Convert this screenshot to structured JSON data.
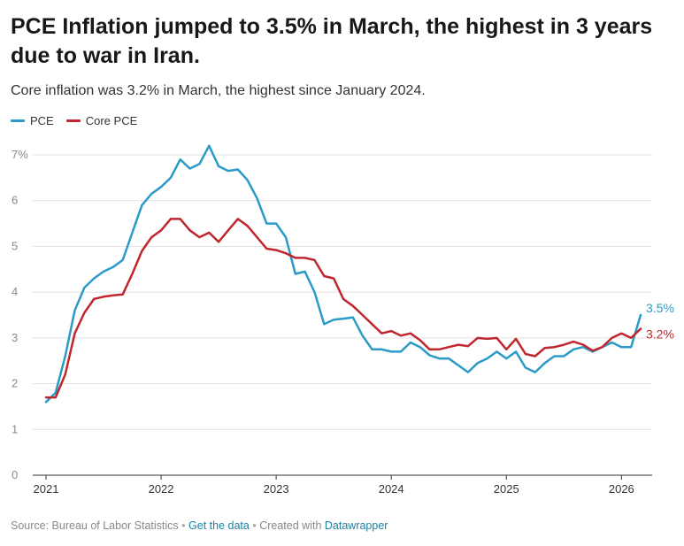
{
  "title": "PCE Inflation jumped to 3.5% in March, the highest in 3 years due to war in Iran.",
  "subtitle": "Core inflation was 3.2% in March, the highest since January 2024.",
  "footer": {
    "source": "Source: Bureau of Labor Statistics",
    "get_data": "Get the data",
    "created_with": "Created with",
    "tool": "Datawrapper",
    "sep": "•"
  },
  "chart_data": {
    "type": "line",
    "xlim": [
      "2021-01",
      "2026-03"
    ],
    "ylim": [
      0,
      7
    ],
    "y_ticks": [
      0,
      1,
      2,
      3,
      4,
      5,
      6,
      7
    ],
    "y_tick_labels": [
      "0",
      "1",
      "2",
      "3",
      "4",
      "5",
      "6",
      "7%"
    ],
    "x_ticks": [
      "2021-01",
      "2022-01",
      "2023-01",
      "2024-01",
      "2025-01",
      "2026-01"
    ],
    "x_tick_labels": [
      "2021",
      "2022",
      "2023",
      "2024",
      "2025",
      "2026"
    ],
    "grid": true,
    "legend_position": "top-left",
    "series": [
      {
        "name": "PCE",
        "color": "#2a9bc8",
        "end_label": "3.5%",
        "points": [
          [
            "2021-01",
            1.6
          ],
          [
            "2021-02",
            1.8
          ],
          [
            "2021-03",
            2.6
          ],
          [
            "2021-04",
            3.6
          ],
          [
            "2021-05",
            4.1
          ],
          [
            "2021-06",
            4.3
          ],
          [
            "2021-07",
            4.45
          ],
          [
            "2021-08",
            4.55
          ],
          [
            "2021-09",
            4.7
          ],
          [
            "2021-10",
            5.3
          ],
          [
            "2021-11",
            5.9
          ],
          [
            "2021-12",
            6.15
          ],
          [
            "2022-01",
            6.3
          ],
          [
            "2022-02",
            6.5
          ],
          [
            "2022-03",
            6.9
          ],
          [
            "2022-04",
            6.7
          ],
          [
            "2022-05",
            6.8
          ],
          [
            "2022-06",
            7.2
          ],
          [
            "2022-07",
            6.75
          ],
          [
            "2022-08",
            6.65
          ],
          [
            "2022-09",
            6.68
          ],
          [
            "2022-10",
            6.45
          ],
          [
            "2022-11",
            6.05
          ],
          [
            "2022-12",
            5.5
          ],
          [
            "2023-01",
            5.5
          ],
          [
            "2023-02",
            5.2
          ],
          [
            "2023-03",
            4.4
          ],
          [
            "2023-04",
            4.45
          ],
          [
            "2023-05",
            4.0
          ],
          [
            "2023-06",
            3.3
          ],
          [
            "2023-07",
            3.4
          ],
          [
            "2023-08",
            3.42
          ],
          [
            "2023-09",
            3.45
          ],
          [
            "2023-10",
            3.05
          ],
          [
            "2023-11",
            2.75
          ],
          [
            "2023-12",
            2.75
          ],
          [
            "2024-01",
            2.7
          ],
          [
            "2024-02",
            2.7
          ],
          [
            "2024-03",
            2.9
          ],
          [
            "2024-04",
            2.8
          ],
          [
            "2024-05",
            2.62
          ],
          [
            "2024-06",
            2.55
          ],
          [
            "2024-07",
            2.55
          ],
          [
            "2024-08",
            2.4
          ],
          [
            "2024-09",
            2.25
          ],
          [
            "2024-10",
            2.45
          ],
          [
            "2024-11",
            2.55
          ],
          [
            "2024-12",
            2.7
          ],
          [
            "2025-01",
            2.55
          ],
          [
            "2025-02",
            2.7
          ],
          [
            "2025-03",
            2.35
          ],
          [
            "2025-04",
            2.25
          ],
          [
            "2025-05",
            2.45
          ],
          [
            "2025-06",
            2.6
          ],
          [
            "2025-07",
            2.6
          ],
          [
            "2025-08",
            2.75
          ],
          [
            "2025-09",
            2.8
          ],
          [
            "2025-10",
            2.7
          ],
          [
            "2025-11",
            2.8
          ],
          [
            "2025-12",
            2.9
          ],
          [
            "2026-01",
            2.8
          ],
          [
            "2026-02",
            2.8
          ],
          [
            "2026-03",
            3.5
          ]
        ]
      },
      {
        "name": "Core PCE",
        "color": "#c0262d",
        "end_label": "3.2%",
        "points": [
          [
            "2021-01",
            1.7
          ],
          [
            "2021-02",
            1.7
          ],
          [
            "2021-03",
            2.2
          ],
          [
            "2021-04",
            3.1
          ],
          [
            "2021-05",
            3.55
          ],
          [
            "2021-06",
            3.85
          ],
          [
            "2021-07",
            3.9
          ],
          [
            "2021-08",
            3.93
          ],
          [
            "2021-09",
            3.95
          ],
          [
            "2021-10",
            4.4
          ],
          [
            "2021-11",
            4.9
          ],
          [
            "2021-12",
            5.2
          ],
          [
            "2022-01",
            5.35
          ],
          [
            "2022-02",
            5.6
          ],
          [
            "2022-03",
            5.6
          ],
          [
            "2022-04",
            5.35
          ],
          [
            "2022-05",
            5.2
          ],
          [
            "2022-06",
            5.3
          ],
          [
            "2022-07",
            5.1
          ],
          [
            "2022-08",
            5.35
          ],
          [
            "2022-09",
            5.6
          ],
          [
            "2022-10",
            5.45
          ],
          [
            "2022-11",
            5.2
          ],
          [
            "2022-12",
            4.95
          ],
          [
            "2023-01",
            4.92
          ],
          [
            "2023-02",
            4.85
          ],
          [
            "2023-03",
            4.75
          ],
          [
            "2023-04",
            4.75
          ],
          [
            "2023-05",
            4.7
          ],
          [
            "2023-06",
            4.35
          ],
          [
            "2023-07",
            4.3
          ],
          [
            "2023-08",
            3.85
          ],
          [
            "2023-09",
            3.7
          ],
          [
            "2023-10",
            3.5
          ],
          [
            "2023-11",
            3.3
          ],
          [
            "2023-12",
            3.1
          ],
          [
            "2024-01",
            3.15
          ],
          [
            "2024-02",
            3.05
          ],
          [
            "2024-03",
            3.1
          ],
          [
            "2024-04",
            2.95
          ],
          [
            "2024-05",
            2.75
          ],
          [
            "2024-06",
            2.75
          ],
          [
            "2024-07",
            2.8
          ],
          [
            "2024-08",
            2.85
          ],
          [
            "2024-09",
            2.82
          ],
          [
            "2024-10",
            3.0
          ],
          [
            "2024-11",
            2.98
          ],
          [
            "2024-12",
            3.0
          ],
          [
            "2025-01",
            2.75
          ],
          [
            "2025-02",
            2.98
          ],
          [
            "2025-03",
            2.65
          ],
          [
            "2025-04",
            2.6
          ],
          [
            "2025-05",
            2.78
          ],
          [
            "2025-06",
            2.8
          ],
          [
            "2025-07",
            2.85
          ],
          [
            "2025-08",
            2.92
          ],
          [
            "2025-09",
            2.85
          ],
          [
            "2025-10",
            2.72
          ],
          [
            "2025-11",
            2.8
          ],
          [
            "2025-12",
            3.0
          ],
          [
            "2026-01",
            3.1
          ],
          [
            "2026-02",
            3.0
          ],
          [
            "2026-03",
            3.2
          ]
        ]
      }
    ]
  }
}
